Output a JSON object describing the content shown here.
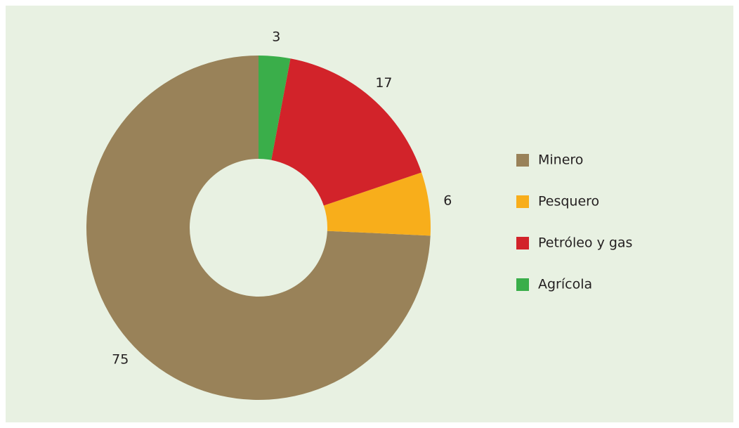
{
  "chart_data": {
    "type": "donut",
    "categories": [
      "Minero",
      "Pesquero",
      "Petróleo y gas",
      "Agrícola"
    ],
    "values": [
      75,
      6,
      17,
      3
    ],
    "colors": [
      "#998259",
      "#f8ae1b",
      "#d2232a",
      "#3aae4a"
    ],
    "legend": "right"
  }
}
